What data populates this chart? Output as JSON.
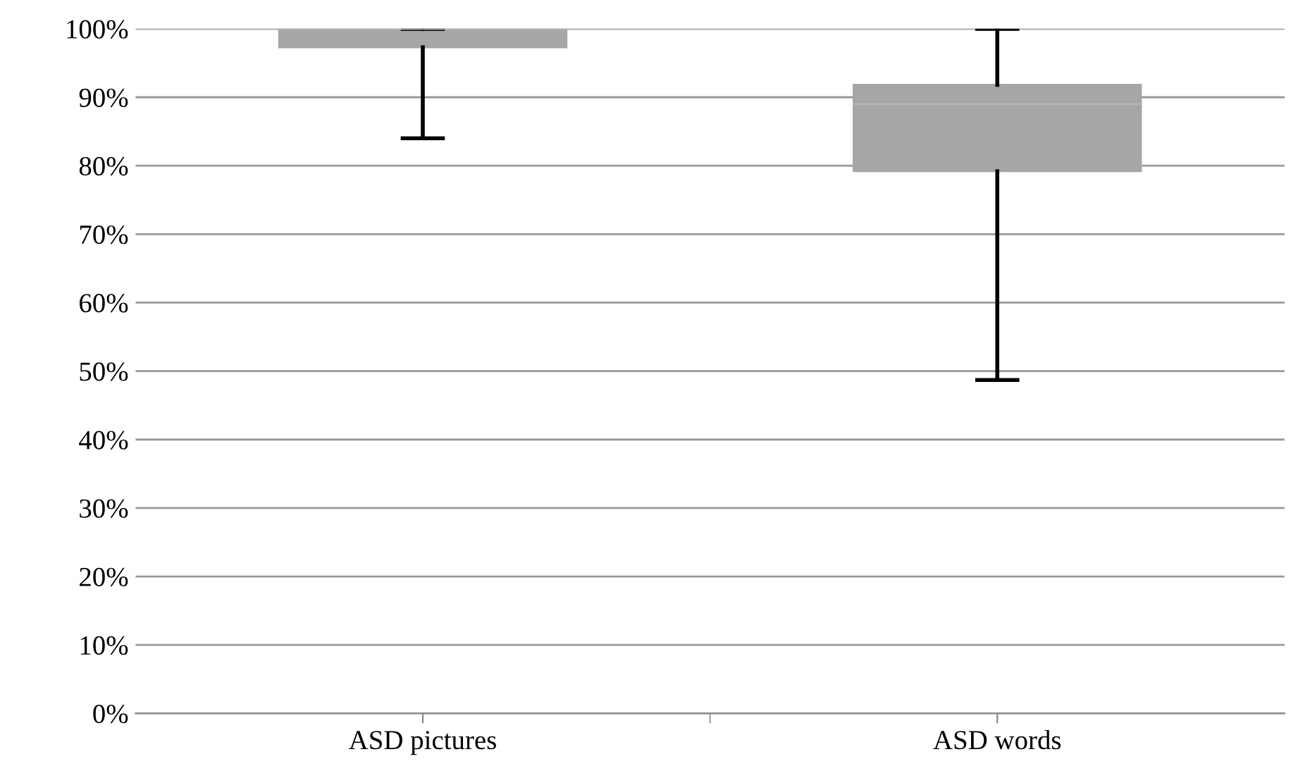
{
  "chart_data": {
    "type": "box",
    "categories": [
      "ASD pictures",
      "ASD words"
    ],
    "boxes": [
      {
        "low": 84,
        "q1": 97.3,
        "median": 100,
        "q3": 100,
        "high": 100
      },
      {
        "low": 48.7,
        "q1": 79.2,
        "median": 89,
        "q3": 91.8,
        "high": 100
      }
    ],
    "color": "#a6a6a6",
    "ylim": [
      0,
      100
    ],
    "yticks": [
      {
        "value": 0,
        "label": "0%"
      },
      {
        "value": 10,
        "label": "10%"
      },
      {
        "value": 20,
        "label": "20%"
      },
      {
        "value": 30,
        "label": "30%"
      },
      {
        "value": 40,
        "label": "40%"
      },
      {
        "value": 50,
        "label": "50%"
      },
      {
        "value": 60,
        "label": "60%"
      },
      {
        "value": 70,
        "label": "70%"
      },
      {
        "value": 80,
        "label": "80%"
      },
      {
        "value": 90,
        "label": "90%"
      },
      {
        "value": 100,
        "label": "100%"
      }
    ],
    "grid": "y",
    "legend": false
  }
}
